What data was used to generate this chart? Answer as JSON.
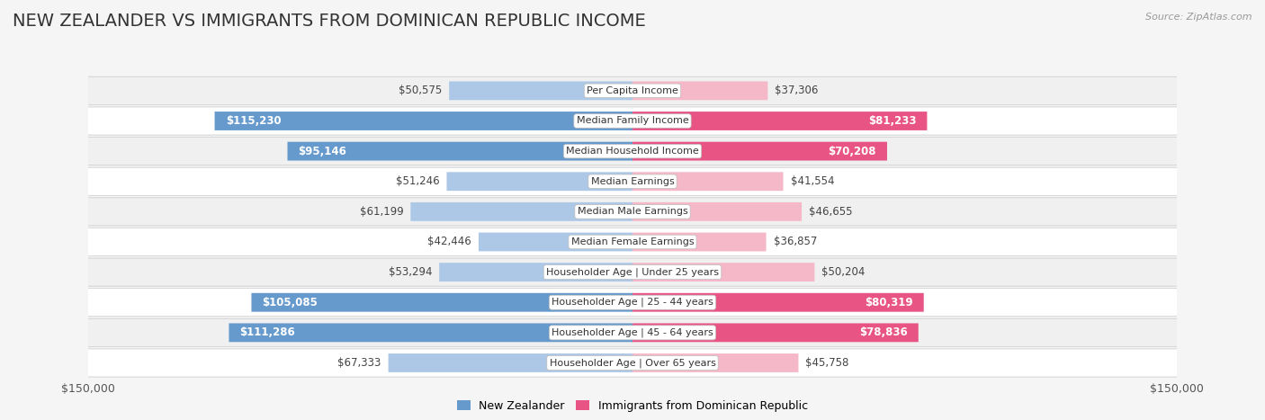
{
  "title": "NEW ZEALANDER VS IMMIGRANTS FROM DOMINICAN REPUBLIC INCOME",
  "source": "Source: ZipAtlas.com",
  "categories": [
    "Per Capita Income",
    "Median Family Income",
    "Median Household Income",
    "Median Earnings",
    "Median Male Earnings",
    "Median Female Earnings",
    "Householder Age | Under 25 years",
    "Householder Age | 25 - 44 years",
    "Householder Age | 45 - 64 years",
    "Householder Age | Over 65 years"
  ],
  "nz_values": [
    50575,
    115230,
    95146,
    51246,
    61199,
    42446,
    53294,
    105085,
    111286,
    67333
  ],
  "dr_values": [
    37306,
    81233,
    70208,
    41554,
    46655,
    36857,
    50204,
    80319,
    78836,
    45758
  ],
  "nz_labels": [
    "$50,575",
    "$115,230",
    "$95,146",
    "$51,246",
    "$61,199",
    "$42,446",
    "$53,294",
    "$105,085",
    "$111,286",
    "$67,333"
  ],
  "dr_labels": [
    "$37,306",
    "$81,233",
    "$70,208",
    "$41,554",
    "$46,655",
    "$36,857",
    "$50,204",
    "$80,319",
    "$78,836",
    "$45,758"
  ],
  "max_val": 150000,
  "nz_color_light": "#adc8e6",
  "nz_color_dark": "#6699cc",
  "dr_color_light": "#f5b8c8",
  "dr_color_dark": "#e85585",
  "nz_label_inside_threshold": 80000,
  "dr_label_inside_threshold": 65000,
  "row_colors": [
    "#f0f0f0",
    "#ffffff",
    "#f0f0f0",
    "#ffffff",
    "#f0f0f0",
    "#ffffff",
    "#f0f0f0",
    "#ffffff",
    "#f0f0f0",
    "#ffffff"
  ],
  "background_color": "#f5f5f5",
  "legend_nz": "New Zealander",
  "legend_dr": "Immigrants from Dominican Republic",
  "bar_height": 0.62,
  "title_fontsize": 14,
  "label_fontsize": 8.5,
  "cat_fontsize": 8.0
}
